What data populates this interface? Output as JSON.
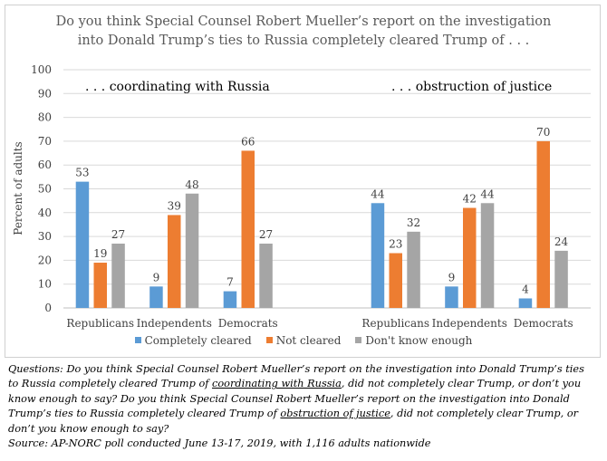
{
  "title": {
    "line1": "Do you think Special Counsel Robert Mueller’s report on the investigation",
    "line2": "into Donald Trump’s ties to Russia completely cleared Trump of  . . ."
  },
  "chart_data": {
    "type": "bar",
    "ylabel": "Percent of adults",
    "ylim": [
      0,
      100
    ],
    "yticks": [
      0,
      10,
      20,
      30,
      40,
      50,
      60,
      70,
      80,
      90,
      100
    ],
    "grid": true,
    "legend_position": "bottom",
    "panels": [
      {
        "label": ". . . coordinating with Russia",
        "categories": [
          "Republicans",
          "Independents",
          "Democrats"
        ],
        "series": [
          {
            "name": "Completely cleared",
            "color": "#5b9bd5",
            "values": [
              53,
              9,
              7
            ]
          },
          {
            "name": "Not cleared",
            "color": "#ed7d31",
            "values": [
              19,
              39,
              66
            ]
          },
          {
            "name": "Don't know enough",
            "color": "#a5a5a5",
            "values": [
              27,
              48,
              27
            ]
          }
        ]
      },
      {
        "label": ". . . obstruction of justice",
        "categories": [
          "Republicans",
          "Independents",
          "Democrats"
        ],
        "series": [
          {
            "name": "Completely cleared",
            "color": "#5b9bd5",
            "values": [
              44,
              9,
              4
            ]
          },
          {
            "name": "Not cleared",
            "color": "#ed7d31",
            "values": [
              23,
              42,
              70
            ]
          },
          {
            "name": "Don't know enough",
            "color": "#a5a5a5",
            "values": [
              32,
              44,
              24
            ]
          }
        ]
      }
    ]
  },
  "legend": {
    "items": [
      {
        "name": "Completely cleared",
        "color": "#5b9bd5"
      },
      {
        "name": "Not cleared",
        "color": "#ed7d31"
      },
      {
        "name": "Don't know enough",
        "color": "#a5a5a5"
      }
    ]
  },
  "notes": {
    "q1a": "Questions: Do you think Special Counsel Robert Mueller’s report on the investigation into Donald Trump’s ties",
    "q1b": "to Russia completely cleared Trump of ",
    "q1b_u": "coordinating with Russia",
    "q1c": ", did not completely clear Trump, or don’t you",
    "q2a": "know enough to say? Do you think Special Counsel Robert Mueller’s report on the investigation into Donald",
    "q2b": "Trump’s ties to Russia completely cleared Trump of ",
    "q2b_u": "obstruction of justice",
    "q2c": ", did not completely clear Trump, or",
    "q2d": "don’t you know enough to say?",
    "source": "Source: AP-NORC poll conducted June 13-17, 2019, with 1,116 adults nationwide"
  }
}
